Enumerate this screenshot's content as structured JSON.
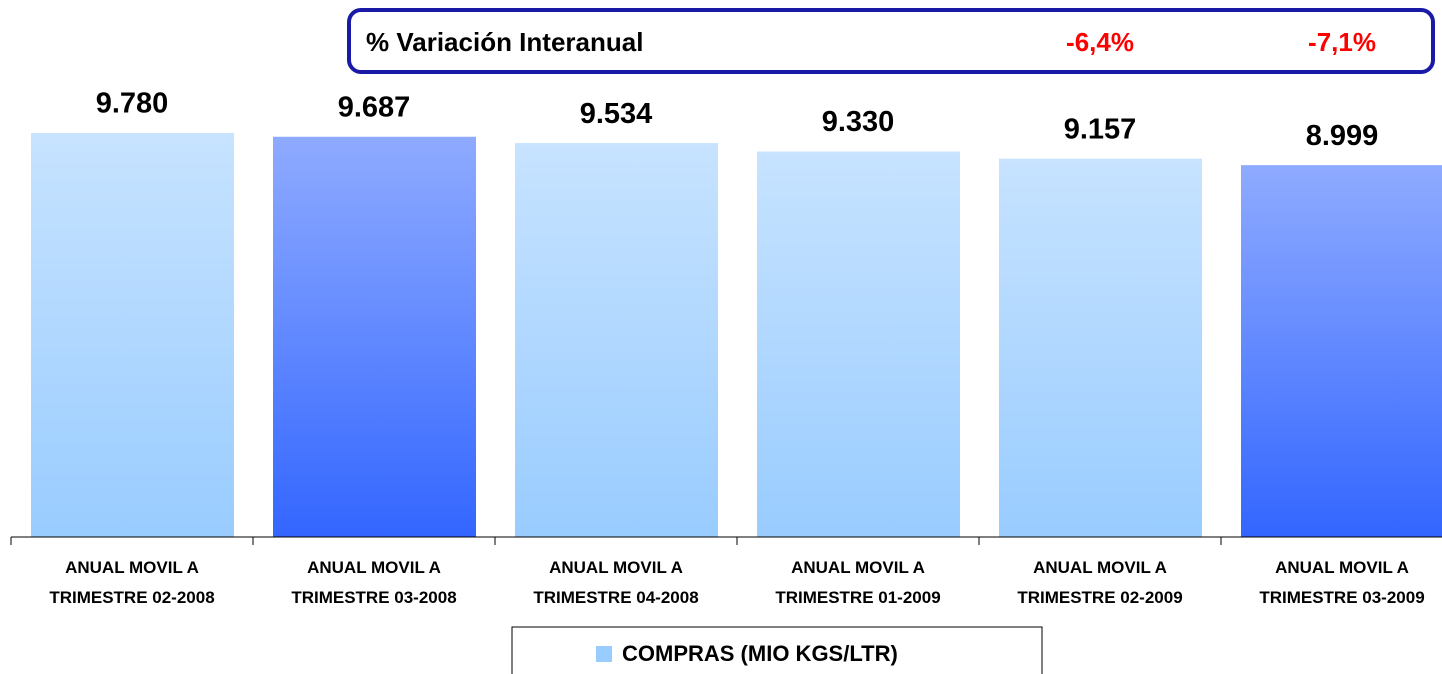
{
  "chart_data": {
    "type": "bar",
    "categories": [
      "ANUAL MOVIL A TRIMESTRE 02-2008",
      "ANUAL MOVIL A TRIMESTRE 03-2008",
      "ANUAL MOVIL A TRIMESTRE 04-2008",
      "ANUAL MOVIL A TRIMESTRE 01-2009",
      "ANUAL MOVIL A TRIMESTRE 02-2009",
      "ANUAL MOVIL A TRIMESTRE 03-2009"
    ],
    "series": [
      {
        "name": "COMPRAS (MIO KGS/LTR)",
        "color": "#99ccff",
        "colors": [
          "#99ccff",
          "#3366ff",
          "#99ccff",
          "#99ccff",
          "#99ccff",
          "#3366ff"
        ],
        "values": [
          9780,
          9687,
          9534,
          9330,
          9157,
          8999
        ],
        "value_labels": [
          "9.780",
          "9.687",
          "9.534",
          "9.330",
          "9.157",
          "8.999"
        ]
      }
    ],
    "variation": {
      "title": "% Variación Interanual",
      "values": [
        -6.4,
        -7.1
      ],
      "value_labels": [
        "-6,4%",
        "-7,1%"
      ],
      "categories": [
        4,
        5
      ]
    }
  }
}
